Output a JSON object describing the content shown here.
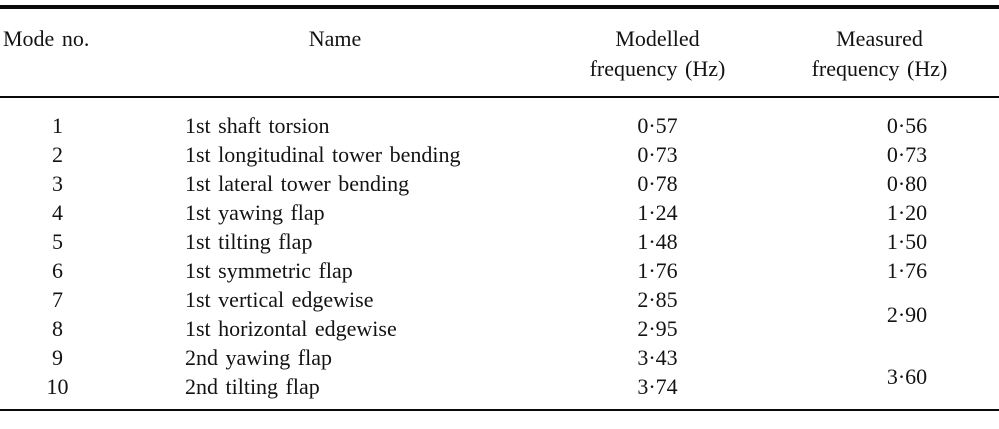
{
  "page": {
    "background_color": "#ffffff",
    "text_color": "#131313",
    "rule_color": "#0a0a0a"
  },
  "table": {
    "headers": {
      "mode": "Mode no.",
      "name": "Name",
      "modelled": {
        "line1": "Modelled",
        "line2": "frequency (Hz)"
      },
      "measured": {
        "line1": "Measured",
        "line2": "frequency (Hz)"
      }
    },
    "rows": [
      {
        "mode": "1",
        "name": "1st shaft torsion",
        "modelled": "0·57",
        "measured": "0·56"
      },
      {
        "mode": "2",
        "name": "1st longitudinal tower bending",
        "modelled": "0·73",
        "measured": "0·73"
      },
      {
        "mode": "3",
        "name": "1st lateral tower bending",
        "modelled": "0·78",
        "measured": "0·80"
      },
      {
        "mode": "4",
        "name": "1st yawing flap",
        "modelled": "1·24",
        "measured": "1·20"
      },
      {
        "mode": "5",
        "name": "1st tilting flap",
        "modelled": "1·48",
        "measured": "1·50"
      },
      {
        "mode": "6",
        "name": "1st symmetric flap",
        "modelled": "1·76",
        "measured": "1·76"
      },
      {
        "mode": "7",
        "name": "1st vertical edgewise",
        "modelled": "2·85",
        "measured": "2·90"
      },
      {
        "mode": "8",
        "name": "1st horizontal edgewise",
        "modelled": "2·95"
      },
      {
        "mode": "9",
        "name": "2nd yawing flap",
        "modelled": "3·43",
        "measured": "3·60"
      },
      {
        "mode": "10",
        "name": "2nd tilting flap",
        "modelled": "3·74"
      }
    ]
  }
}
